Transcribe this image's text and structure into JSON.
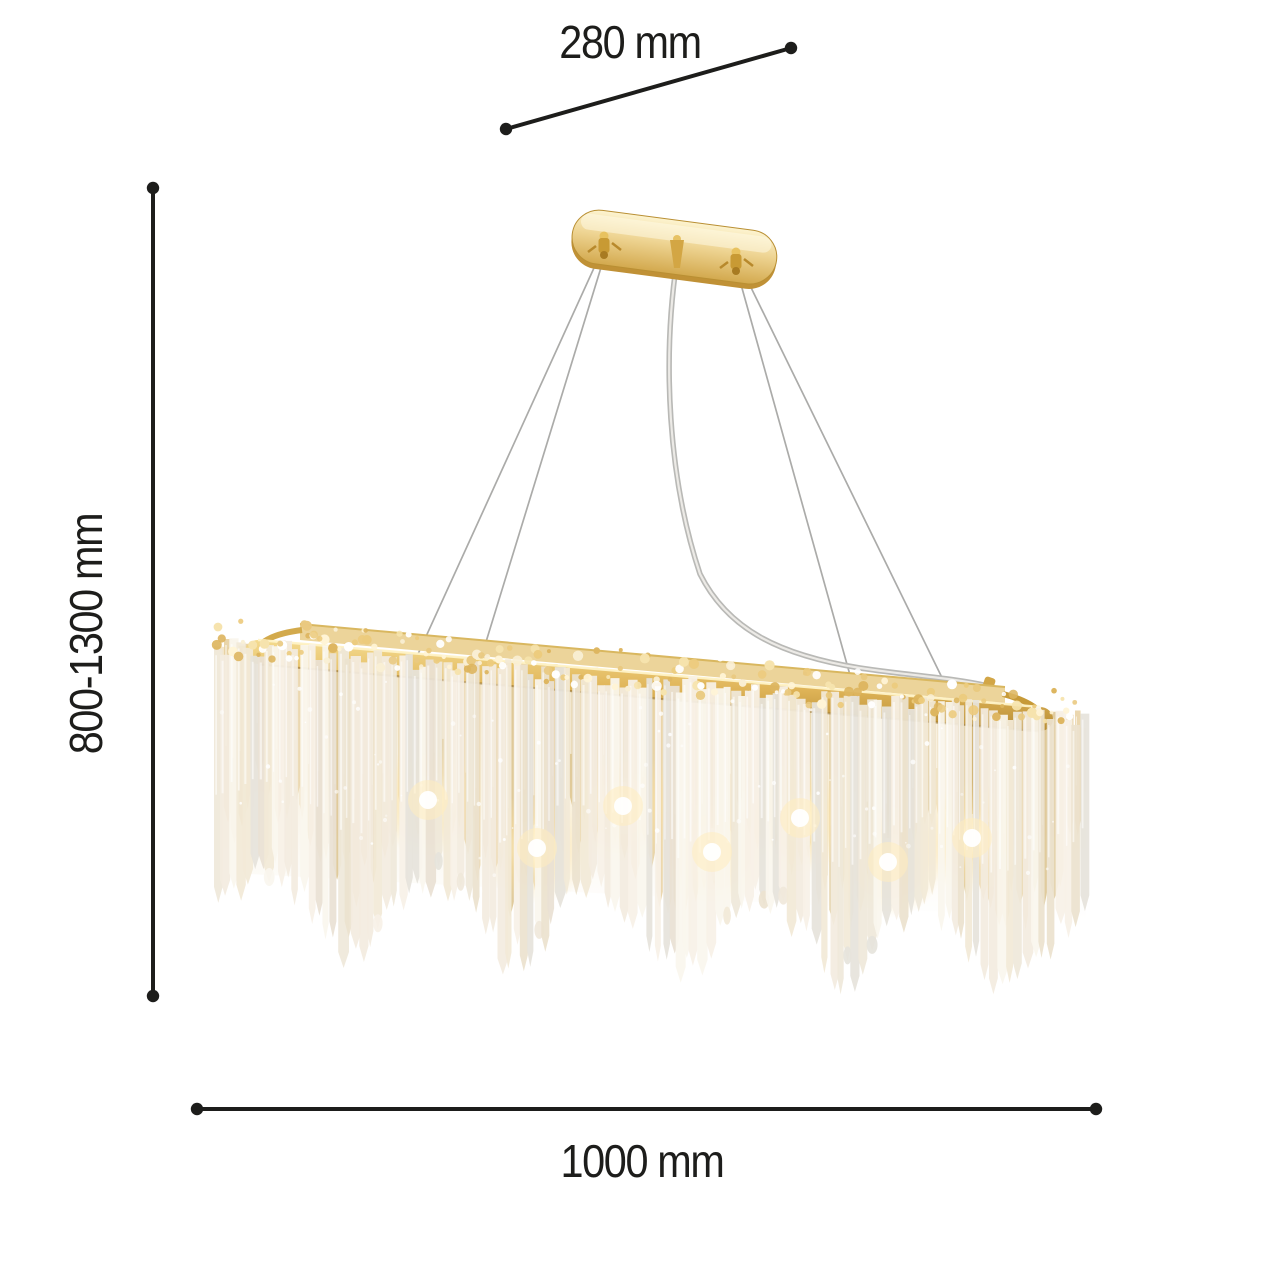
{
  "dimension_labels": {
    "canopy_length": "280 mm",
    "suspension_height": "800-1300 mm",
    "fixture_length": "1000 mm"
  },
  "colors": {
    "background": "#ffffff",
    "dimension_line": "#1d1d1b",
    "gold_accent": "#d9ab4f",
    "crystal_champagne": "#efe0bf"
  }
}
